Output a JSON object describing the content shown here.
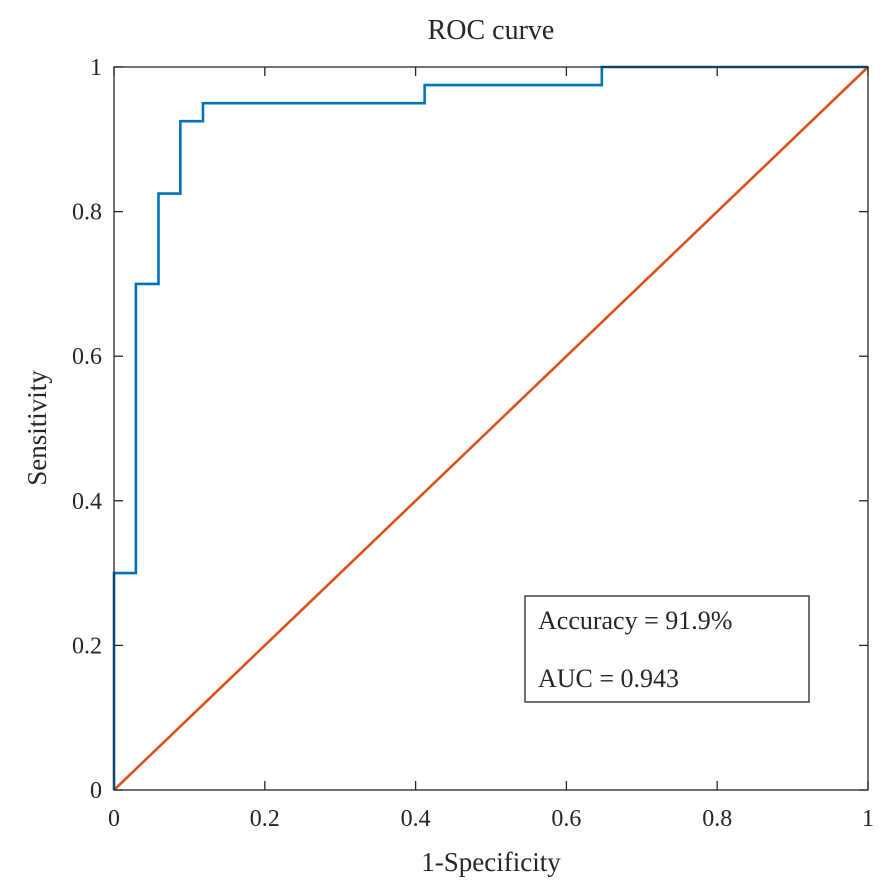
{
  "chart_data": {
    "type": "line",
    "title": "ROC curve",
    "xlabel": "1-Specificity",
    "ylabel": "Sensitivity",
    "xlim": [
      0,
      1
    ],
    "ylim": [
      0,
      1
    ],
    "grid": false,
    "xticks": [
      0,
      0.2,
      0.4,
      0.6,
      0.8,
      1
    ],
    "xtick_labels": [
      "0",
      "0.2",
      "0.4",
      "0.6",
      "0.8",
      "1"
    ],
    "yticks": [
      0,
      0.2,
      0.4,
      0.6,
      0.8,
      1
    ],
    "ytick_labels": [
      "0",
      "0.2",
      "0.4",
      "0.6",
      "0.8",
      "1"
    ],
    "series": [
      {
        "name": "ROC",
        "color": "#0072BD",
        "x": [
          0,
          0,
          0,
          0.029,
          0.029,
          0.059,
          0.059,
          0.088,
          0.088,
          0.118,
          0.118,
          0.412,
          0.412,
          0.647,
          0.647,
          1
        ],
        "y": [
          0,
          0.3,
          0.3,
          0.3,
          0.7,
          0.7,
          0.825,
          0.825,
          0.925,
          0.925,
          0.95,
          0.95,
          0.975,
          0.975,
          1,
          1
        ]
      },
      {
        "name": "Reference",
        "color": "#D95319",
        "x": [
          0,
          1
        ],
        "y": [
          0,
          1
        ]
      }
    ],
    "annotations": {
      "accuracy": "Accuracy = 91.9%",
      "auc": "AUC = 0.943"
    }
  }
}
